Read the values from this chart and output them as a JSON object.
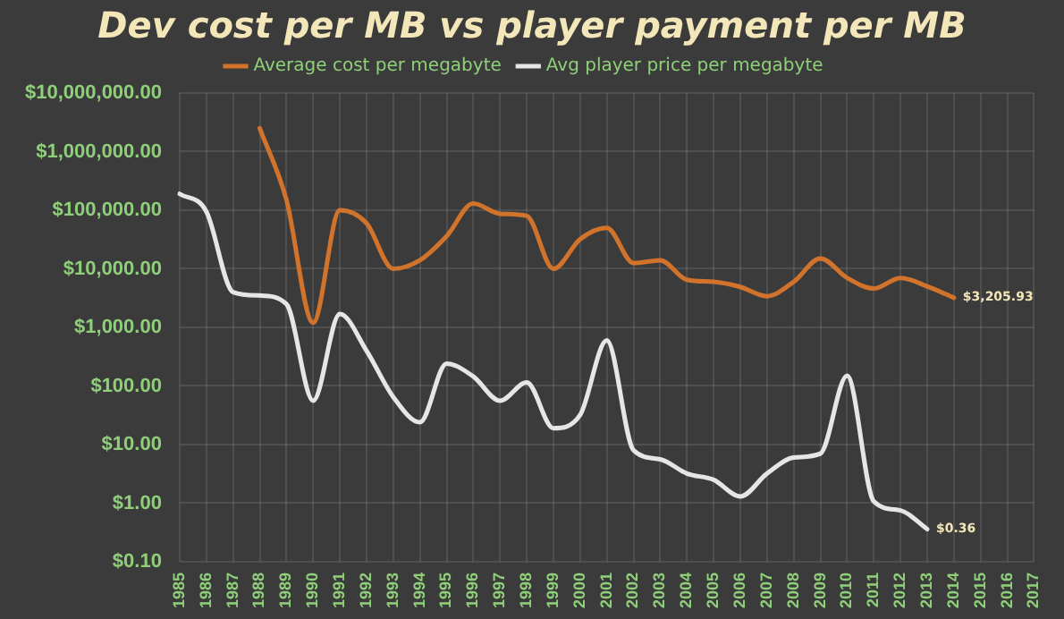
{
  "chart_data": {
    "type": "line",
    "title": "Dev cost per MB vs player payment per MB",
    "categories": [
      "1985",
      "1986",
      "1987",
      "1988",
      "1989",
      "1990",
      "1991",
      "1992",
      "1993",
      "1994",
      "1995",
      "1996",
      "1997",
      "1998",
      "1999",
      "2000",
      "2001",
      "2002",
      "2003",
      "2004",
      "2005",
      "2006",
      "2007",
      "2008",
      "2009",
      "2010",
      "2011",
      "2012",
      "2013",
      "2014",
      "2015",
      "2016",
      "2017"
    ],
    "series": [
      {
        "name": "Average cost per megabyte",
        "color": "#d2732c",
        "values": [
          null,
          null,
          null,
          2500000,
          150000,
          1200,
          100000,
          60000,
          10000,
          14000,
          36000,
          130000,
          87000,
          80000,
          10000,
          32000,
          50000,
          12500,
          14000,
          6500,
          6000,
          4900,
          3400,
          6000,
          15000,
          7000,
          4600,
          7000,
          5000,
          3205.93,
          null,
          null,
          null
        ],
        "value_labels": [
          null,
          null,
          null,
          null,
          null,
          null,
          null,
          null,
          null,
          null,
          null,
          null,
          null,
          null,
          null,
          null,
          null,
          null,
          null,
          null,
          null,
          null,
          null,
          null,
          null,
          null,
          null,
          null,
          null,
          "$3,205.93",
          null,
          null,
          null
        ]
      },
      {
        "name": "Avg player price per megabyte",
        "color": "#e6e6e6",
        "values": [
          190000,
          95000,
          4000,
          3500,
          2500,
          56,
          1700,
          400,
          65,
          24,
          240,
          145,
          56,
          115,
          19,
          32,
          600,
          8,
          5.6,
          3.2,
          2.5,
          1.3,
          3.2,
          6,
          7,
          150,
          1.07,
          0.75,
          0.36,
          null,
          null,
          null,
          null
        ],
        "value_labels": [
          null,
          null,
          null,
          null,
          null,
          null,
          null,
          null,
          null,
          null,
          null,
          null,
          null,
          null,
          null,
          null,
          null,
          null,
          null,
          null,
          null,
          null,
          null,
          null,
          null,
          null,
          null,
          null,
          "$0.36",
          null,
          null,
          null,
          null
        ]
      }
    ],
    "log": "y",
    "ylim": [
      0.1,
      10000000
    ],
    "yticks": [
      {
        "value": 0.1,
        "label": "$0.10"
      },
      {
        "value": 1,
        "label": "$1.00"
      },
      {
        "value": 10,
        "label": "$10.00"
      },
      {
        "value": 100,
        "label": "$100.00"
      },
      {
        "value": 1000,
        "label": "$1,000.00"
      },
      {
        "value": 10000,
        "label": "$10,000.00"
      },
      {
        "value": 100000,
        "label": "$100,000.00"
      },
      {
        "value": 1000000,
        "label": "$1,000,000.00"
      },
      {
        "value": 10000000,
        "label": "$10,000,000.00"
      }
    ],
    "grid": true,
    "legend": "top",
    "marker": "none",
    "line_style": "solid"
  }
}
